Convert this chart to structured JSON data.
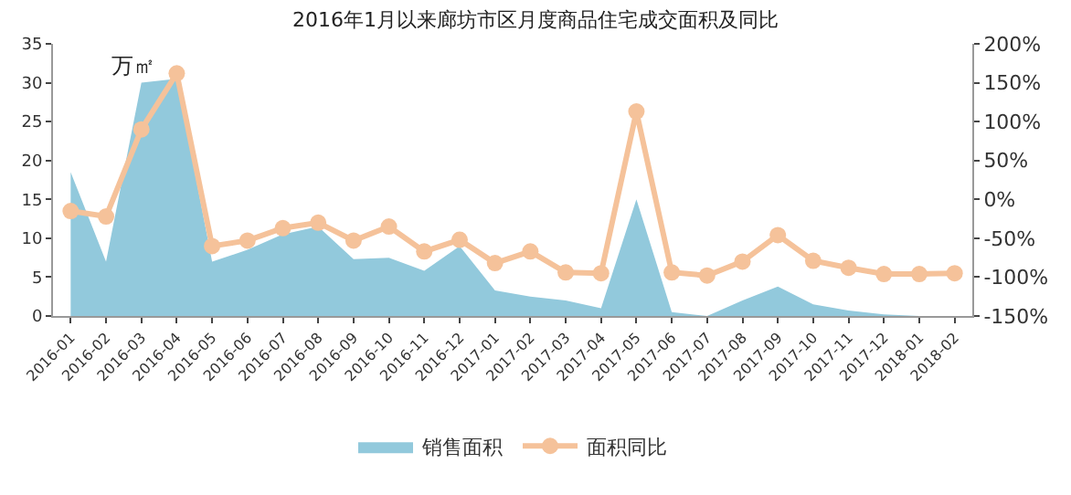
{
  "chart_data": {
    "type": "area",
    "title": "2016年1月以来廊坊市区月度商品住宅成交面积及同比",
    "categories": [
      "2016-01",
      "2016-02",
      "2016-03",
      "2016-04",
      "2016-05",
      "2016-06",
      "2016-07",
      "2016-08",
      "2016-09",
      "2016-10",
      "2016-11",
      "2016-12",
      "2017-01",
      "2017-02",
      "2017-03",
      "2017-04",
      "2017-05",
      "2017-06",
      "2017-07",
      "2017-08",
      "2017-09",
      "2017-10",
      "2017-11",
      "2017-12",
      "2018-01",
      "2018-02"
    ],
    "series": [
      {
        "name": "销售面积",
        "color": "#92c9dc",
        "values": [
          18.5,
          7,
          30,
          30.5,
          7,
          8.5,
          10.5,
          11.5,
          7.3,
          7.5,
          5.8,
          9,
          3.3,
          2.5,
          2,
          1,
          15,
          0.5,
          0,
          2,
          3.8,
          1.5,
          0.7,
          0.2,
          0,
          0
        ]
      },
      {
        "name": "面积同比",
        "type": "line",
        "axis": "y2",
        "color": "#f5c29a",
        "marker": "circle",
        "values": [
          -15,
          -22,
          90,
          162,
          -60,
          -53,
          -37,
          -30,
          -53,
          -35,
          -67,
          -52,
          -82,
          -67,
          -94,
          -95,
          113,
          -94,
          -98,
          -80,
          -46,
          -79,
          -88,
          -96,
          -96,
          -95
        ]
      }
    ],
    "ylim": [
      0,
      35
    ],
    "yticks": [
      0,
      5,
      10,
      15,
      20,
      25,
      30,
      35
    ],
    "y2lim": [
      -150,
      200
    ],
    "y2ticks": [
      {
        "value": -150,
        "label": "-150%"
      },
      {
        "value": -100,
        "label": "-100%"
      },
      {
        "value": -50,
        "label": "-50%"
      },
      {
        "value": 0,
        "label": "0%"
      },
      {
        "value": 50,
        "label": "50%"
      },
      {
        "value": 100,
        "label": "100%"
      },
      {
        "value": 150,
        "label": "150%"
      },
      {
        "value": 200,
        "label": "200%"
      }
    ],
    "annotations": [
      "万㎡"
    ],
    "legend": "bottom",
    "grid": false
  }
}
